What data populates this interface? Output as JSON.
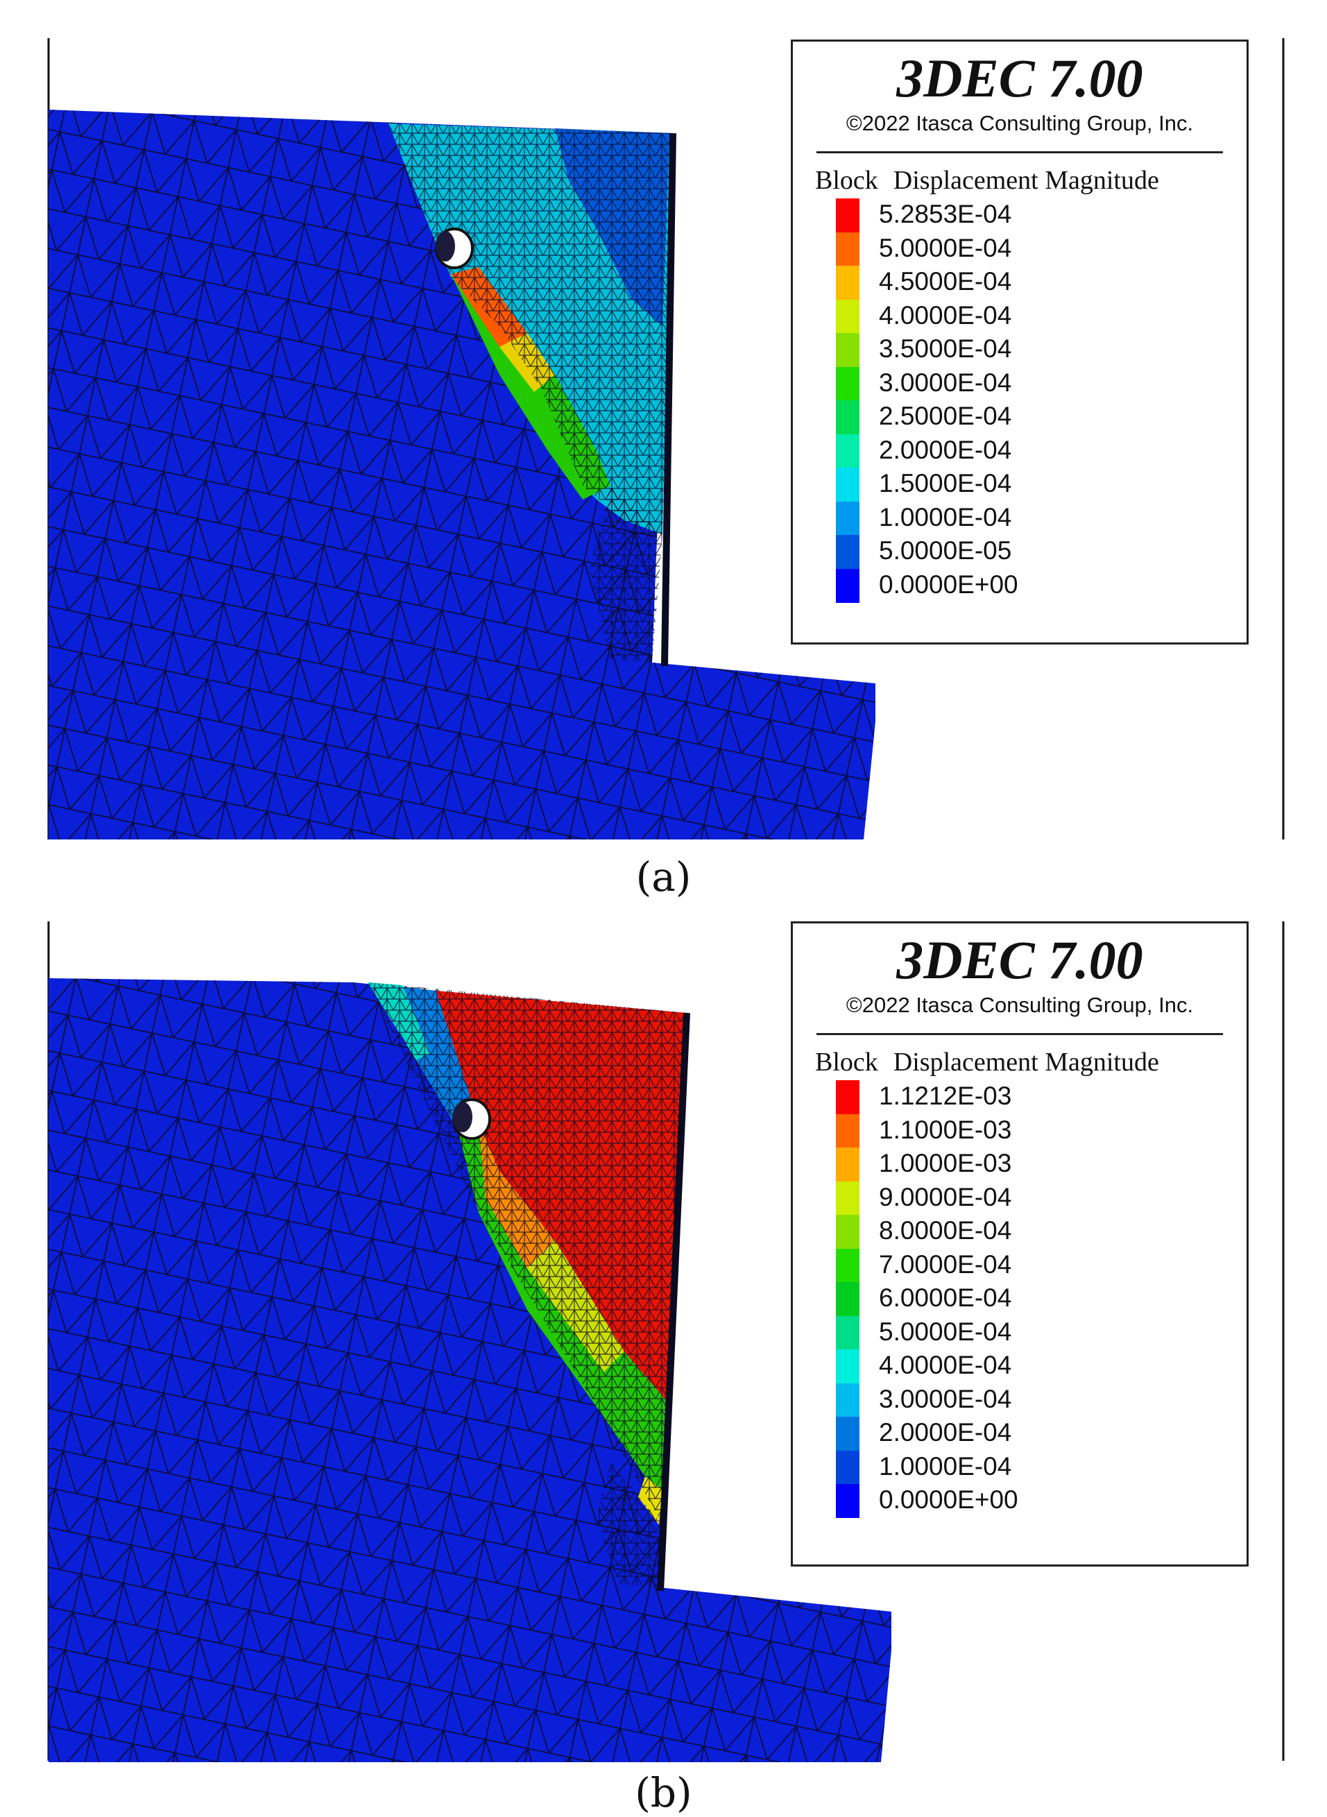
{
  "panels": [
    {
      "caption": "(a)",
      "legend": {
        "title": "3DEC 7.00",
        "copyright": "©2022 Itasca Consulting Group, Inc.",
        "variable_1": "Block",
        "variable_2": "Displacement Magnitude",
        "items": [
          {
            "label": "5.2853E-04",
            "color": "#ff0000"
          },
          {
            "label": "5.0000E-04",
            "color": "#ff6600"
          },
          {
            "label": "4.5000E-04",
            "color": "#ffbb00"
          },
          {
            "label": "4.0000E-04",
            "color": "#ccee00"
          },
          {
            "label": "3.5000E-04",
            "color": "#88e000"
          },
          {
            "label": "3.0000E-04",
            "color": "#22dd00"
          },
          {
            "label": "2.5000E-04",
            "color": "#00dd55"
          },
          {
            "label": "2.0000E-04",
            "color": "#00eeaa"
          },
          {
            "label": "1.5000E-04",
            "color": "#00ddee"
          },
          {
            "label": "1.0000E-04",
            "color": "#0099ee"
          },
          {
            "label": "5.0000E-05",
            "color": "#0055dd"
          },
          {
            "label": "0.0000E+00",
            "color": "#0000ff"
          }
        ]
      }
    },
    {
      "caption": "(b)",
      "legend": {
        "title": "3DEC 7.00",
        "copyright": "©2022 Itasca Consulting Group, Inc.",
        "variable_1": "Block",
        "variable_2": "Displacement Magnitude",
        "items": [
          {
            "label": "1.1212E-03",
            "color": "#ff0000"
          },
          {
            "label": "1.1000E-03",
            "color": "#ff6600"
          },
          {
            "label": "1.0000E-03",
            "color": "#ffaa00"
          },
          {
            "label": "9.0000E-04",
            "color": "#ccee00"
          },
          {
            "label": "8.0000E-04",
            "color": "#88e000"
          },
          {
            "label": "7.0000E-04",
            "color": "#22dd00"
          },
          {
            "label": "6.0000E-04",
            "color": "#00cc22"
          },
          {
            "label": "5.0000E-04",
            "color": "#00dd88"
          },
          {
            "label": "4.0000E-04",
            "color": "#00eedd"
          },
          {
            "label": "3.0000E-04",
            "color": "#00bbee"
          },
          {
            "label": "2.0000E-04",
            "color": "#0077dd"
          },
          {
            "label": "1.0000E-04",
            "color": "#0044dd"
          },
          {
            "label": "0.0000E+00",
            "color": "#0000ff"
          }
        ]
      }
    }
  ],
  "colors": {
    "mesh_base": "#0b1fd8",
    "mesh_line": "#0a0a30"
  }
}
